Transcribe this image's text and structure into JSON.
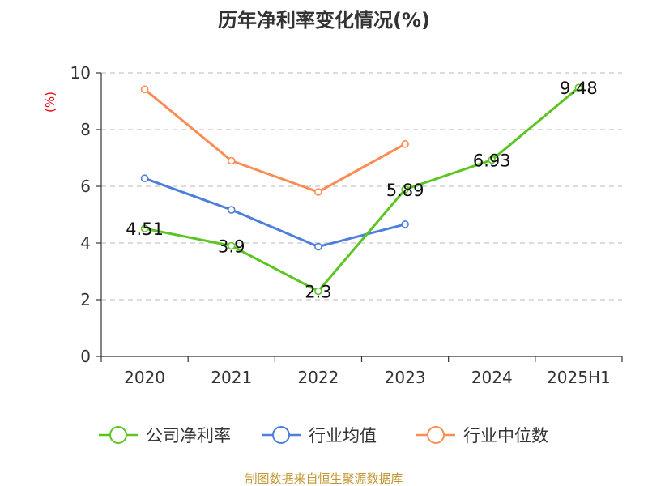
{
  "chart_data": {
    "type": "line",
    "title": "历年净利率变化情况(%)",
    "ylabel": "(%)",
    "xlabel": "",
    "categories": [
      "2020",
      "2021",
      "2022",
      "2023",
      "2024",
      "2025H1"
    ],
    "ylim": [
      0,
      10
    ],
    "yticks": [
      0,
      2,
      4,
      6,
      8,
      10
    ],
    "grid": true,
    "legend_position": "bottom",
    "series": [
      {
        "name": "公司净利率",
        "color": "#5cc524",
        "values": [
          4.51,
          3.9,
          2.3,
          5.89,
          6.93,
          9.48
        ],
        "labels": [
          "4.51",
          "3.9",
          "2.3",
          "5.89",
          "6.93",
          "9.48"
        ]
      },
      {
        "name": "行业均值",
        "color": "#4d7fdb",
        "values": [
          6.28,
          5.17,
          3.87,
          4.66,
          null,
          null
        ],
        "labels": []
      },
      {
        "name": "行业中位数",
        "color": "#fa8c54",
        "values": [
          9.42,
          6.9,
          5.8,
          7.49,
          null,
          null
        ],
        "labels": []
      }
    ]
  },
  "source": "制图数据来自恒生聚源数据库"
}
